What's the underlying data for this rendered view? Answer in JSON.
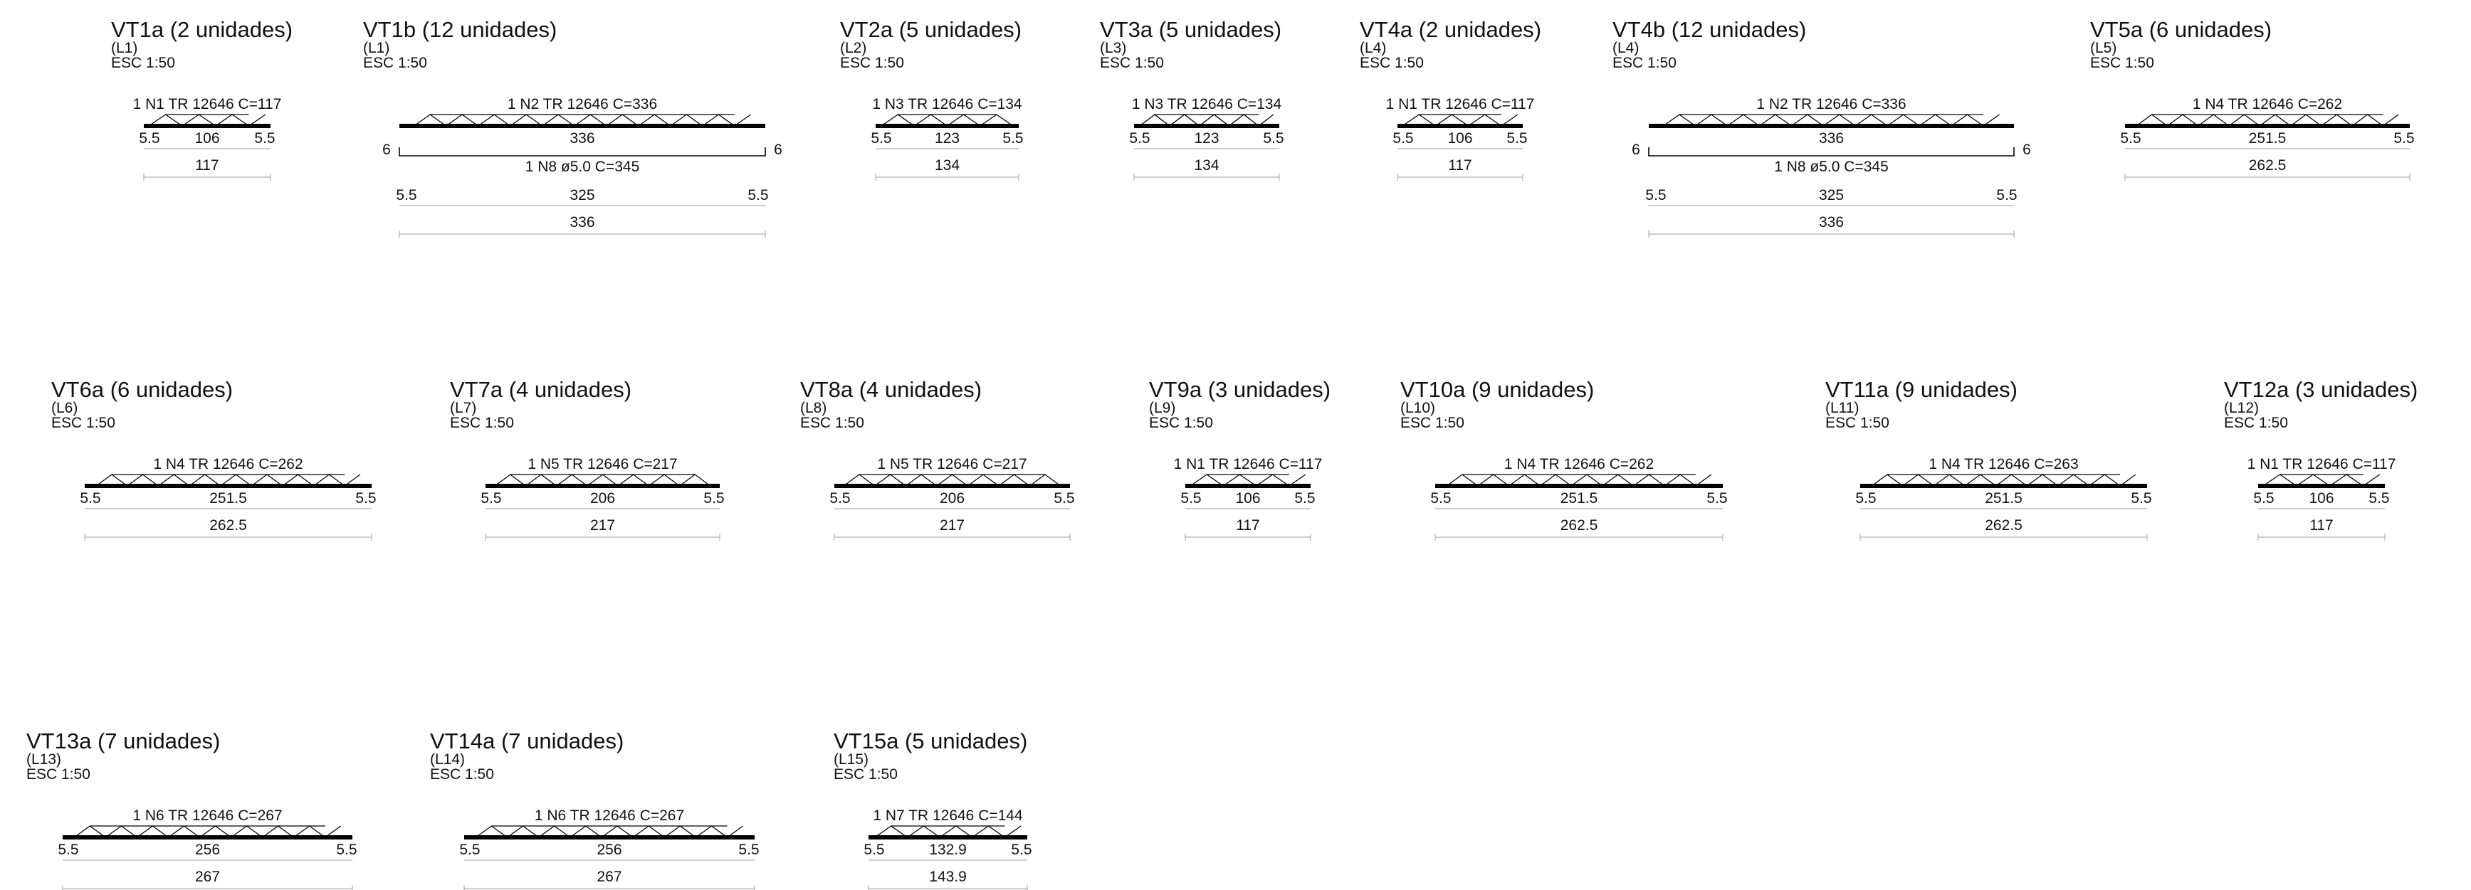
{
  "beams": [
    {
      "id": "vt1a",
      "title": "VT1a (2 unidades)",
      "lane": "(L1)",
      "scale": "ESC 1:50",
      "label": "1 N1 TR 12646 C=117",
      "segments": [
        "5.5",
        "106",
        "5.5"
      ],
      "total": "117"
    },
    {
      "id": "vt1b",
      "title": "VT1b (12 unidades)",
      "lane": "(L1)",
      "scale": "ESC 1:50",
      "label": "1 N2 TR 12646 C=336",
      "segments": [
        "336"
      ],
      "total": "",
      "rebar": {
        "label": "1 N8 ø5.0 C=345",
        "hook_left": "6",
        "hook_right": "6",
        "segments": [
          "5.5",
          "325",
          "5.5"
        ],
        "total": "336"
      }
    },
    {
      "id": "vt2a",
      "title": "VT2a (5 unidades)",
      "lane": "(L2)",
      "scale": "ESC 1:50",
      "label": "1 N3 TR 12646 C=134",
      "segments": [
        "5.5",
        "123",
        "5.5"
      ],
      "total": "134"
    },
    {
      "id": "vt3a",
      "title": "VT3a (5 unidades)",
      "lane": "(L3)",
      "scale": "ESC 1:50",
      "label": "1 N3 TR 12646 C=134",
      "segments": [
        "5.5",
        "123",
        "5.5"
      ],
      "total": "134"
    },
    {
      "id": "vt4a",
      "title": "VT4a (2 unidades)",
      "lane": "(L4)",
      "scale": "ESC 1:50",
      "label": "1 N1 TR 12646 C=117",
      "segments": [
        "5.5",
        "106",
        "5.5"
      ],
      "total": "117"
    },
    {
      "id": "vt4b",
      "title": "VT4b (12 unidades)",
      "lane": "(L4)",
      "scale": "ESC 1:50",
      "label": "1 N2 TR 12646 C=336",
      "segments": [
        "336"
      ],
      "total": "",
      "rebar": {
        "label": "1 N8 ø5.0 C=345",
        "hook_left": "6",
        "hook_right": "6",
        "segments": [
          "5.5",
          "325",
          "5.5"
        ],
        "total": "336"
      }
    },
    {
      "id": "vt5a",
      "title": "VT5a (6 unidades)",
      "lane": "(L5)",
      "scale": "ESC 1:50",
      "label": "1 N4 TR 12646 C=262",
      "segments": [
        "5.5",
        "251.5",
        "5.5"
      ],
      "total": "262.5"
    },
    {
      "id": "vt6a",
      "title": "VT6a (6 unidades)",
      "lane": "(L6)",
      "scale": "ESC 1:50",
      "label": "1 N4 TR 12646 C=262",
      "segments": [
        "5.5",
        "251.5",
        "5.5"
      ],
      "total": "262.5"
    },
    {
      "id": "vt7a",
      "title": "VT7a (4 unidades)",
      "lane": "(L7)",
      "scale": "ESC 1:50",
      "label": "1 N5 TR 12646 C=217",
      "segments": [
        "5.5",
        "206",
        "5.5"
      ],
      "total": "217"
    },
    {
      "id": "vt8a",
      "title": "VT8a (4 unidades)",
      "lane": "(L8)",
      "scale": "ESC 1:50",
      "label": "1 N5 TR 12646 C=217",
      "segments": [
        "5.5",
        "206",
        "5.5"
      ],
      "total": "217"
    },
    {
      "id": "vt9a",
      "title": "VT9a (3 unidades)",
      "lane": "(L9)",
      "scale": "ESC 1:50",
      "label": "1 N1 TR 12646 C=117",
      "segments": [
        "5.5",
        "106",
        "5.5"
      ],
      "total": "117"
    },
    {
      "id": "vt10a",
      "title": "VT10a (9 unidades)",
      "lane": "(L10)",
      "scale": "ESC 1:50",
      "label": "1 N4 TR 12646 C=262",
      "segments": [
        "5.5",
        "251.5",
        "5.5"
      ],
      "total": "262.5"
    },
    {
      "id": "vt11a",
      "title": "VT11a (9 unidades)",
      "lane": "(L11)",
      "scale": "ESC 1:50",
      "label": "1 N4 TR 12646 C=263",
      "segments": [
        "5.5",
        "251.5",
        "5.5"
      ],
      "total": "262.5"
    },
    {
      "id": "vt12a",
      "title": "VT12a (3 unidades)",
      "lane": "(L12)",
      "scale": "ESC 1:50",
      "label": "1 N1 TR 12646 C=117",
      "segments": [
        "5.5",
        "106",
        "5.5"
      ],
      "total": "117"
    },
    {
      "id": "vt13a",
      "title": "VT13a (7 unidades)",
      "lane": "(L13)",
      "scale": "ESC 1:50",
      "label": "1 N6 TR 12646 C=267",
      "segments": [
        "5.5",
        "256",
        "5.5"
      ],
      "total": "267"
    },
    {
      "id": "vt14a",
      "title": "VT14a (7 unidades)",
      "lane": "(L14)",
      "scale": "ESC 1:50",
      "label": "1 N6 TR 12646 C=267",
      "segments": [
        "5.5",
        "256",
        "5.5"
      ],
      "total": "267"
    },
    {
      "id": "vt15a",
      "title": "VT15a (5 unidades)",
      "lane": "(L15)",
      "scale": "ESC 1:50",
      "label": "1 N7 TR 12646 C=144",
      "segments": [
        "5.5",
        "132.9",
        "5.5"
      ],
      "total": "143.9"
    }
  ]
}
